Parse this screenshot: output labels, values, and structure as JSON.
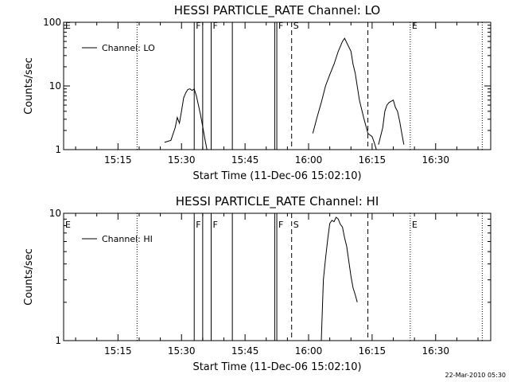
{
  "footer": {
    "timestamp": "22-Mar-2010 05:30"
  },
  "chart_data": [
    {
      "type": "line",
      "title": "HESSI PARTICLE_RATE Channel: LO",
      "xlabel": "Start Time (11-Dec-06 15:02:10)",
      "ylabel": "Counts/sec",
      "yscale": "log",
      "ylim": [
        1,
        100
      ],
      "yticks": [
        1,
        10,
        100
      ],
      "ytick_labels": [
        "1",
        "10",
        "100"
      ],
      "xlim": [
        "15:02",
        "16:43"
      ],
      "xticks": [
        "15:15",
        "15:30",
        "15:45",
        "16:00",
        "16:15",
        "16:30"
      ],
      "grid": false,
      "legend": {
        "position": "top-left",
        "entries": [
          "Channel: LO"
        ]
      },
      "series": [
        {
          "name": "Channel: LO",
          "color": "#000000",
          "x": [
            "15:26:00",
            "15:27:30",
            "15:28:30",
            "15:29:00",
            "15:29:30",
            "15:30:00",
            "15:30:30",
            "15:31:00",
            "15:31:30",
            "15:32:00",
            "15:32:30",
            "15:33:00",
            "15:33:30",
            "15:34:00",
            "15:34:30",
            "15:35:00",
            "15:35:30",
            "15:36:00"
          ],
          "y": [
            1.3,
            1.4,
            2.2,
            3.2,
            2.6,
            4.0,
            6.5,
            7.8,
            8.8,
            9.0,
            8.5,
            9.0,
            7.0,
            5.0,
            3.5,
            2.3,
            1.5,
            1.0
          ]
        },
        {
          "name": "Channel: LO",
          "color": "#000000",
          "x": [
            "16:01:00",
            "16:02:00",
            "16:02:30",
            "16:03:00",
            "16:04:00",
            "16:05:00",
            "16:06:00",
            "16:07:00",
            "16:08:00",
            "16:08:30",
            "16:09:00",
            "16:10:00",
            "16:10:30",
            "16:11:00",
            "16:12:00",
            "16:13:00",
            "16:14:00",
            "16:15:00",
            "16:15:30",
            "16:16:00"
          ],
          "y": [
            1.8,
            3.2,
            4.2,
            5.5,
            10,
            15,
            22,
            35,
            50,
            56,
            48,
            35,
            22,
            16,
            6,
            3.2,
            1.8,
            1.6,
            1.3,
            1.0
          ]
        },
        {
          "name": "Channel: LO",
          "color": "#000000",
          "x": [
            "16:16:30",
            "16:17:30",
            "16:18:00",
            "16:18:30",
            "16:19:00",
            "16:20:00",
            "16:20:30",
            "16:21:00",
            "16:21:30",
            "16:22:00",
            "16:22:30"
          ],
          "y": [
            1.2,
            2.2,
            4.0,
            5.0,
            5.5,
            6.0,
            4.6,
            4.0,
            2.8,
            1.8,
            1.2
          ]
        }
      ],
      "event_lines": [
        {
          "time": "15:19:30",
          "style": "dotted"
        },
        {
          "time": "15:33:00",
          "style": "solid"
        },
        {
          "time": "15:35:00",
          "style": "solid"
        },
        {
          "time": "15:37:00",
          "style": "solid"
        },
        {
          "time": "15:42:00",
          "style": "solid"
        },
        {
          "time": "15:52:00",
          "style": "solid"
        },
        {
          "time": "15:52:30",
          "style": "solid"
        },
        {
          "time": "15:56:00",
          "style": "dashed"
        },
        {
          "time": "16:14:00",
          "style": "dashed"
        },
        {
          "time": "16:24:00",
          "style": "dotted"
        },
        {
          "time": "16:41:00",
          "style": "dotted"
        }
      ],
      "event_labels": [
        {
          "text": "E",
          "time": "15:02:10"
        },
        {
          "text": "F",
          "time": "15:33:00"
        },
        {
          "text": "F",
          "time": "15:37:00"
        },
        {
          "text": "F",
          "time": "15:52:30"
        },
        {
          "text": "S",
          "time": "15:56:00"
        },
        {
          "text": "E",
          "time": "16:24:00"
        }
      ]
    },
    {
      "type": "line",
      "title": "HESSI PARTICLE_RATE Channel: HI",
      "xlabel": "Start Time (11-Dec-06 15:02:10)",
      "ylabel": "Counts/sec",
      "yscale": "log",
      "ylim": [
        1,
        10
      ],
      "yticks": [
        1,
        10
      ],
      "ytick_labels": [
        "1",
        "10"
      ],
      "xlim": [
        "15:02",
        "16:43"
      ],
      "xticks": [
        "15:15",
        "15:30",
        "15:45",
        "16:00",
        "16:15",
        "16:30"
      ],
      "grid": false,
      "legend": {
        "position": "top-left",
        "entries": [
          "Channel: HI"
        ]
      },
      "series": [
        {
          "name": "Channel: HI",
          "color": "#000000",
          "x": [
            "16:03:00",
            "16:03:30",
            "16:04:00",
            "16:04:30",
            "16:05:00",
            "16:05:30",
            "16:06:00",
            "16:06:30",
            "16:07:00",
            "16:07:30",
            "16:08:00",
            "16:08:30",
            "16:09:00",
            "16:09:30",
            "16:10:00",
            "16:10:30",
            "16:11:00",
            "16:11:30"
          ],
          "y": [
            1.0,
            3.0,
            4.4,
            6.2,
            8.3,
            8.8,
            8.6,
            9.3,
            9.0,
            8.2,
            7.8,
            6.4,
            5.5,
            4.2,
            3.2,
            2.6,
            2.3,
            2.0
          ]
        }
      ],
      "event_lines": [
        {
          "time": "15:19:30",
          "style": "dotted"
        },
        {
          "time": "15:33:00",
          "style": "solid"
        },
        {
          "time": "15:35:00",
          "style": "solid"
        },
        {
          "time": "15:37:00",
          "style": "solid"
        },
        {
          "time": "15:42:00",
          "style": "solid"
        },
        {
          "time": "15:52:00",
          "style": "solid"
        },
        {
          "time": "15:52:30",
          "style": "solid"
        },
        {
          "time": "15:56:00",
          "style": "dashed"
        },
        {
          "time": "16:14:00",
          "style": "dashed"
        },
        {
          "time": "16:24:00",
          "style": "dotted"
        },
        {
          "time": "16:41:00",
          "style": "dotted"
        }
      ],
      "event_labels": [
        {
          "text": "E",
          "time": "15:02:10"
        },
        {
          "text": "F",
          "time": "15:33:00"
        },
        {
          "text": "F",
          "time": "15:37:00"
        },
        {
          "text": "F",
          "time": "15:52:30"
        },
        {
          "text": "S",
          "time": "15:56:00"
        },
        {
          "text": "E",
          "time": "16:24:00"
        }
      ]
    }
  ]
}
